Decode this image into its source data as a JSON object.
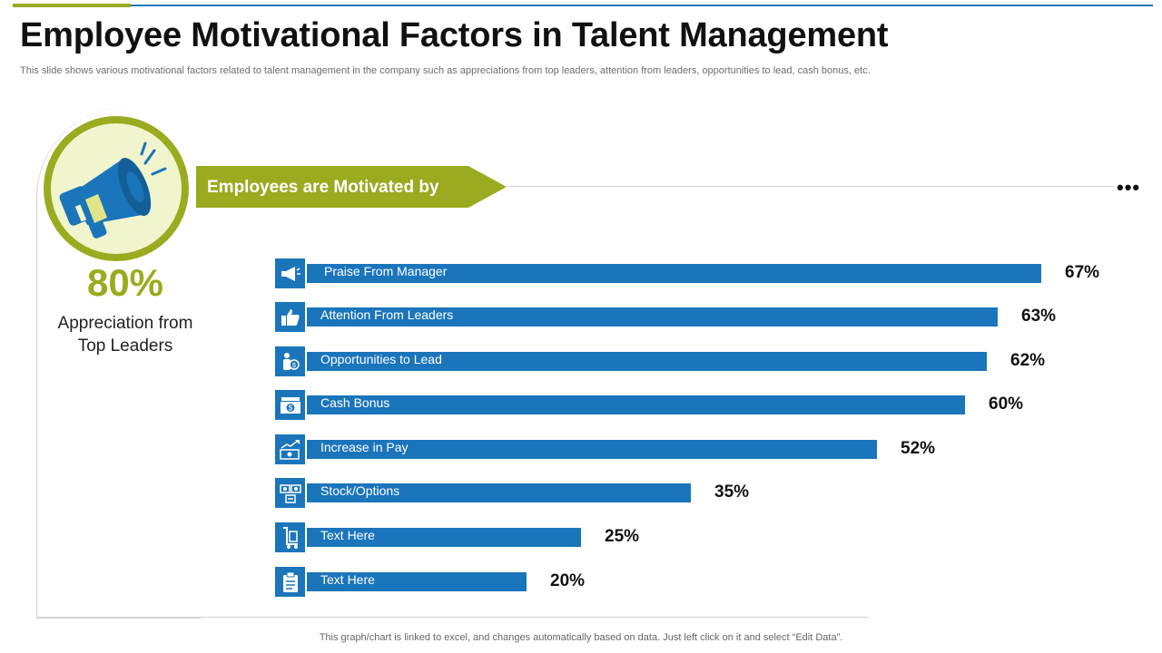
{
  "header": {
    "title": "Employee Motivational Factors in Talent Management",
    "subtitle": "This slide shows various motivational factors related to talent management in the company such as appreciations from top leaders, attention from leaders, opportunities to lead, cash bonus, etc."
  },
  "kpi": {
    "value": "80%",
    "label_line1": "Appreciation from",
    "label_line2": "Top Leaders",
    "icon": "megaphone-icon"
  },
  "banner": {
    "text": "Employees are Motivated by"
  },
  "footer": {
    "note": "This graph/chart is linked to excel,  and changes automatically based on data. Just left click on it and select “Edit Data”."
  },
  "colors": {
    "accent_green": "#9aab1f",
    "bar_blue": "#1b75bb",
    "circle_fill": "#f1f5cd"
  },
  "chart_data": {
    "type": "bar",
    "orientation": "horizontal",
    "title": "Employees are Motivated by",
    "xlim": [
      0,
      100
    ],
    "unit": "%",
    "categories": [
      "Praise From Manager",
      "Attention From Leaders",
      "Opportunities to Lead",
      "Cash Bonus",
      "Increase in Pay",
      "Stock/Options",
      "Text Here",
      "Text Here"
    ],
    "values": [
      67,
      63,
      62,
      60,
      52,
      35,
      25,
      20
    ],
    "value_labels": [
      "67%",
      "63%",
      "62%",
      "60%",
      "52%",
      "35%",
      "25%",
      "20%"
    ],
    "icons": [
      "megaphone-icon",
      "thumbs-up-icon",
      "leader-icon",
      "cash-icon",
      "pay-increase-icon",
      "stock-options-icon",
      "trolley-icon",
      "clipboard-icon"
    ]
  }
}
